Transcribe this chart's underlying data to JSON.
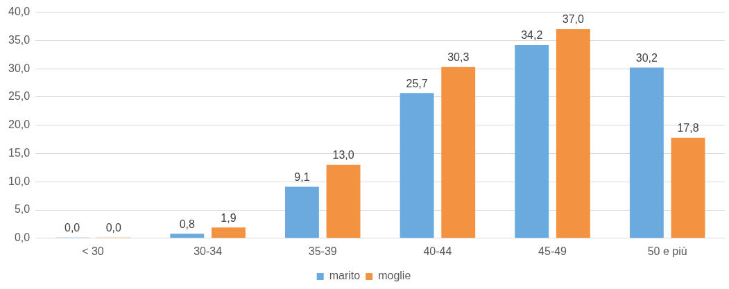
{
  "chart_data": {
    "type": "bar",
    "categories": [
      "< 30",
      "30-34",
      "35-39",
      "40-44",
      "45-49",
      "50 e più"
    ],
    "series": [
      {
        "name": "marito",
        "color": "#6aaade",
        "values": [
          0.0,
          0.8,
          9.1,
          25.7,
          34.2,
          30.2
        ],
        "value_labels": [
          "0,0",
          "0,8",
          "9,1",
          "25,7",
          "34,2",
          "30,2"
        ]
      },
      {
        "name": "moglie",
        "color": "#f39240",
        "values": [
          0.0,
          1.9,
          13.0,
          30.3,
          37.0,
          17.8
        ],
        "value_labels": [
          "0,0",
          "1,9",
          "13,0",
          "30,3",
          "37,0",
          "17,8"
        ]
      }
    ],
    "ylim": [
      0,
      40
    ],
    "yticks": [
      {
        "value": 0,
        "label": "0,0"
      },
      {
        "value": 5,
        "label": "5,0"
      },
      {
        "value": 10,
        "label": "10,0"
      },
      {
        "value": 15,
        "label": "15,0"
      },
      {
        "value": 20,
        "label": "20,0"
      },
      {
        "value": 25,
        "label": "25,0"
      },
      {
        "value": 30,
        "label": "30,0"
      },
      {
        "value": 35,
        "label": "35,0"
      },
      {
        "value": 40,
        "label": "40,0"
      }
    ],
    "grid": "y",
    "legend": "bottom"
  }
}
